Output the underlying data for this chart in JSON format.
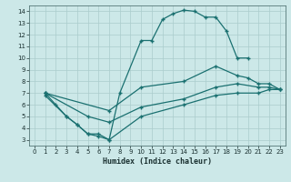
{
  "xlabel": "Humidex (Indice chaleur)",
  "xlim": [
    -0.5,
    23.5
  ],
  "ylim": [
    2.5,
    14.5
  ],
  "xticks": [
    0,
    1,
    2,
    3,
    4,
    5,
    6,
    7,
    8,
    9,
    10,
    11,
    12,
    13,
    14,
    15,
    16,
    17,
    18,
    19,
    20,
    21,
    22,
    23
  ],
  "yticks": [
    3,
    4,
    5,
    6,
    7,
    8,
    9,
    10,
    11,
    12,
    13,
    14
  ],
  "bg_color": "#cce8e8",
  "grid_color": "#aacccc",
  "line_color": "#1a7070",
  "lines": [
    {
      "x": [
        1,
        2,
        3,
        4,
        5,
        6,
        7,
        8,
        10,
        11,
        12,
        13,
        14,
        15,
        16,
        17,
        18,
        19,
        20
      ],
      "y": [
        7,
        6,
        5,
        4.3,
        3.5,
        3.5,
        3,
        7,
        11.5,
        11.5,
        13.3,
        13.8,
        14.1,
        14.0,
        13.5,
        13.5,
        12.3,
        10.0,
        10.0
      ]
    },
    {
      "x": [
        1,
        7,
        10,
        14,
        17,
        19,
        20,
        21,
        22,
        23
      ],
      "y": [
        7,
        5.5,
        7.5,
        8.0,
        9.3,
        8.5,
        8.3,
        7.8,
        7.8,
        7.3
      ]
    },
    {
      "x": [
        1,
        5,
        7,
        10,
        14,
        17,
        19,
        21,
        22,
        23
      ],
      "y": [
        7,
        5.0,
        4.5,
        5.8,
        6.5,
        7.5,
        7.8,
        7.5,
        7.5,
        7.3
      ]
    },
    {
      "x": [
        1,
        3,
        4,
        5,
        6,
        7,
        10,
        14,
        17,
        19,
        21,
        22,
        23
      ],
      "y": [
        6.8,
        5.0,
        4.3,
        3.5,
        3.3,
        3.0,
        5.0,
        6.0,
        6.8,
        7.0,
        7.0,
        7.3,
        7.3
      ]
    }
  ]
}
